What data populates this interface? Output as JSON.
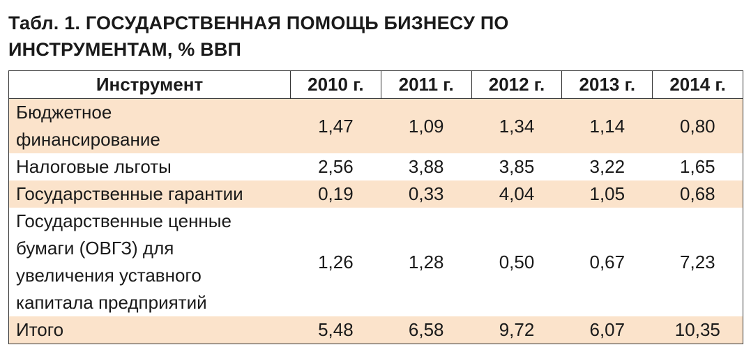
{
  "title": {
    "line1": "Табл. 1. ГОСУДАРСТВЕННАЯ ПОМОЩЬ БИЗНЕСУ ПО",
    "line2": "ИНСТРУМЕНТАМ, % ВВП"
  },
  "table": {
    "headers": [
      "Инструмент",
      "2010 г.",
      "2011 г.",
      "2012 г.",
      "2013 г.",
      "2014 г."
    ],
    "rows": [
      {
        "name_lines": [
          "Бюджетное",
          "финансирование"
        ],
        "values": [
          "1,47",
          "1,09",
          "1,34",
          "1,14",
          "0,80"
        ],
        "shaded": true
      },
      {
        "name_lines": [
          "Налоговые льготы"
        ],
        "values": [
          "2,56",
          "3,88",
          "3,85",
          "3,22",
          "1,65"
        ],
        "shaded": false
      },
      {
        "name_lines": [
          "Государственные гарантии"
        ],
        "values": [
          "0,19",
          "0,33",
          "4,04",
          "1,05",
          "0,68"
        ],
        "shaded": true
      },
      {
        "name_lines": [
          "Государственные ценные",
          "бумаги (ОВГЗ) для",
          "увеличения уставного",
          "капитала предприятий"
        ],
        "values": [
          "1,26",
          "1,28",
          "0,50",
          "0,67",
          "7,23"
        ],
        "shaded": false
      },
      {
        "name_lines": [
          "Итого"
        ],
        "values": [
          "5,48",
          "6,58",
          "9,72",
          "6,07",
          "10,35"
        ],
        "shaded": true
      }
    ]
  },
  "colors": {
    "shade": "#fbe3cb",
    "border": "#333333",
    "text": "#1a1a1a"
  }
}
